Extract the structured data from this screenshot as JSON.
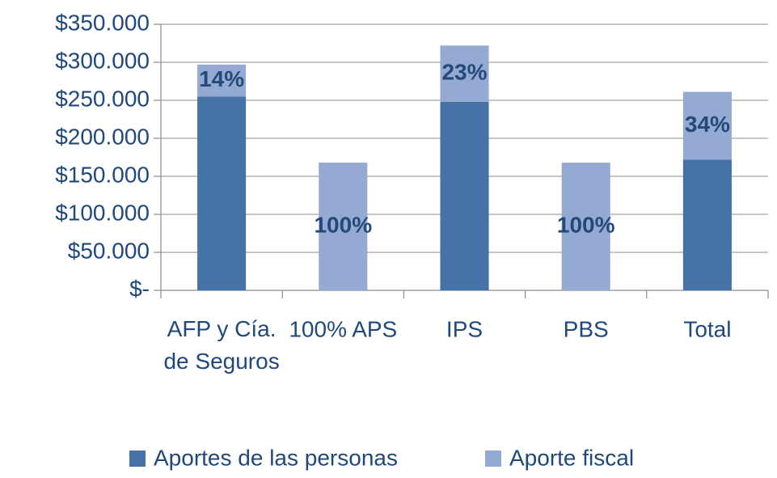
{
  "chart_data": {
    "type": "stacked_bar",
    "categories": [
      "AFP y Cía. de Seguros",
      "100% APS",
      "IPS",
      "PBS",
      "Total"
    ],
    "series": [
      {
        "name": "Aportes de las personas",
        "color": "#4672a8",
        "values": [
          255000,
          0,
          248000,
          0,
          172000
        ]
      },
      {
        "name": "Aporte fiscal",
        "color": "#95aad3",
        "values": [
          42000,
          168000,
          74000,
          168000,
          89000
        ]
      }
    ],
    "annotations": [
      "14%",
      "100%",
      "23%",
      "100%",
      "34%"
    ],
    "ylim": [
      0,
      350000
    ],
    "yticks": [
      {
        "value": 0,
        "label": "$-"
      },
      {
        "value": 50000,
        "label": "$50.000"
      },
      {
        "value": 100000,
        "label": "$100.000"
      },
      {
        "value": 150000,
        "label": "$150.000"
      },
      {
        "value": 200000,
        "label": "$200.000"
      },
      {
        "value": 250000,
        "label": "$250.000"
      },
      {
        "value": 300000,
        "label": "$300.000"
      },
      {
        "value": 350000,
        "label": "$350.000"
      }
    ],
    "grid": true,
    "legend": "bottom"
  }
}
